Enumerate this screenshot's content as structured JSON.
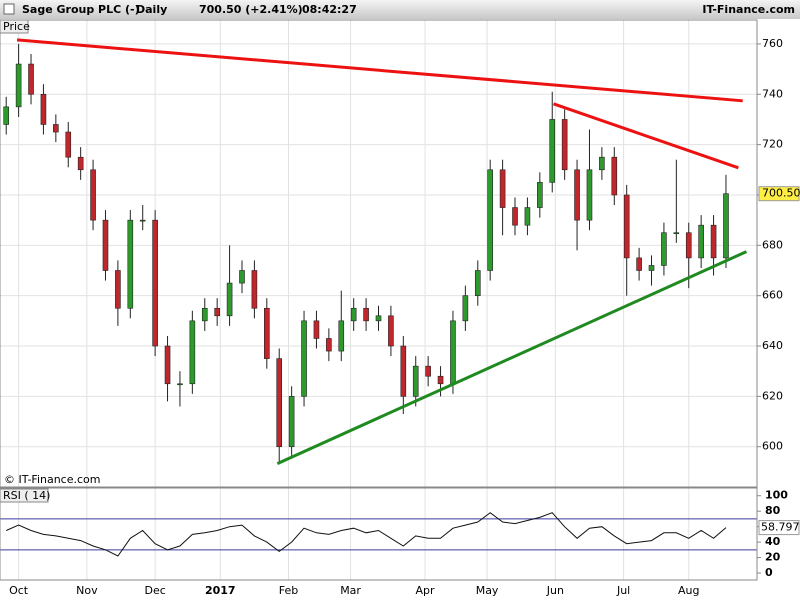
{
  "chart_data": [
    {
      "type": "candlestick",
      "title": "Sage Group PLC (-)",
      "period": "Daily",
      "last": "700.50 (+2.41%)",
      "time": "08:42:27",
      "site": "IT-Finance.com",
      "axis_label": "Price",
      "copyright": "© IT-Finance.com",
      "x": [
        1,
        5,
        9,
        13,
        17,
        21,
        25,
        29,
        33,
        37,
        41,
        45,
        49,
        53,
        57,
        61,
        65,
        69,
        73,
        77,
        81,
        85,
        89,
        93,
        97,
        101,
        105,
        109,
        113,
        117,
        121,
        125,
        129,
        133,
        137,
        141,
        145,
        149,
        153,
        157,
        161,
        165,
        169,
        173,
        177,
        181,
        185,
        189,
        193,
        197,
        201,
        205,
        209,
        213,
        217,
        221,
        225,
        229,
        233
      ],
      "open": [
        728,
        735,
        752,
        740,
        728,
        725,
        715,
        710,
        690,
        670,
        655,
        690,
        690,
        640,
        625,
        625,
        650,
        655,
        652,
        665,
        670,
        655,
        635,
        600,
        620,
        650,
        643,
        638,
        650,
        655,
        650,
        652,
        640,
        620,
        632,
        628,
        625,
        650,
        660,
        670,
        710,
        695,
        688,
        695,
        705,
        730,
        710,
        690,
        710,
        715,
        700,
        675,
        670,
        672,
        685,
        685,
        675,
        688,
        675
      ],
      "high": [
        739,
        760,
        756,
        744,
        732,
        729,
        719,
        714,
        694,
        674,
        694,
        696,
        694,
        644,
        630,
        654,
        659,
        659,
        680,
        674,
        674,
        659,
        639,
        624,
        654,
        654,
        647,
        662,
        659,
        659,
        656,
        656,
        644,
        636,
        636,
        632,
        654,
        664,
        674,
        714,
        714,
        699,
        699,
        709,
        741,
        734,
        714,
        726,
        719,
        719,
        704,
        679,
        676,
        689,
        714,
        689,
        692,
        692,
        708
      ],
      "low": [
        724,
        731,
        736,
        724,
        721,
        711,
        706,
        686,
        666,
        648,
        651,
        686,
        636,
        618,
        616,
        621,
        646,
        648,
        648,
        661,
        651,
        631,
        594,
        596,
        616,
        639,
        634,
        634,
        646,
        646,
        646,
        636,
        613,
        616,
        624,
        620,
        621,
        646,
        656,
        666,
        684,
        684,
        684,
        691,
        701,
        706,
        678,
        686,
        706,
        696,
        660,
        666,
        664,
        668,
        681,
        663,
        671,
        668,
        671
      ],
      "close": [
        735,
        752,
        740,
        728,
        725,
        715,
        710,
        690,
        670,
        655,
        690,
        690,
        640,
        625,
        625,
        650,
        655,
        652,
        665,
        670,
        655,
        635,
        600,
        620,
        650,
        643,
        638,
        650,
        655,
        650,
        652,
        640,
        620,
        632,
        628,
        625,
        650,
        660,
        670,
        710,
        695,
        688,
        695,
        705,
        730,
        710,
        690,
        710,
        715,
        700,
        675,
        670,
        672,
        685,
        685,
        675,
        688,
        675,
        700.5
      ],
      "up_color": "#2e9a2e",
      "down_color": "#c0272d",
      "xlim": [
        -1,
        243
      ],
      "xticks": [
        {
          "value": 5,
          "label": "Oct"
        },
        {
          "value": 27,
          "label": "Nov"
        },
        {
          "value": 49,
          "label": "Dec"
        },
        {
          "value": 70,
          "label": "2017"
        },
        {
          "value": 92,
          "label": "Feb"
        },
        {
          "value": 112,
          "label": "Mar"
        },
        {
          "value": 136,
          "label": "Apr"
        },
        {
          "value": 156,
          "label": "May"
        },
        {
          "value": 178,
          "label": "Jun"
        },
        {
          "value": 200,
          "label": "Jul"
        },
        {
          "value": 221,
          "label": "Aug"
        }
      ],
      "ylim": [
        584,
        769.5
      ],
      "yticks": [
        600,
        620,
        640,
        660,
        680,
        700,
        720,
        740,
        760
      ],
      "grid": true,
      "last_price": {
        "value": 700.5,
        "label": "700.50"
      },
      "trendlines": [
        {
          "x": [
            4.5,
            238.4
          ],
          "y": [
            761.6,
            737.4
          ],
          "color": "#ee1111"
        },
        {
          "x": [
            177.4,
            237
          ],
          "y": [
            736.2,
            710.8
          ],
          "color": "#ee1111"
        },
        {
          "x": [
            88.4,
            239.6
          ],
          "y": [
            593.3,
            677.5
          ],
          "color": "#1f8a1f"
        }
      ]
    },
    {
      "type": "line",
      "axis_label": "RSI ( 14)",
      "values": [
        55,
        62,
        55,
        50,
        48,
        45,
        42,
        35,
        30,
        22,
        45,
        55,
        38,
        30,
        35,
        50,
        52,
        55,
        60,
        62,
        48,
        40,
        28,
        40,
        58,
        52,
        50,
        55,
        58,
        52,
        55,
        45,
        35,
        48,
        45,
        45,
        58,
        62,
        66,
        78,
        66,
        64,
        68,
        72,
        78,
        60,
        45,
        58,
        60,
        48,
        38,
        40,
        42,
        52,
        52,
        45,
        55,
        45,
        58.797
      ],
      "color": "#111111",
      "ylim": [
        -9,
        110
      ],
      "yticks": [
        0,
        20,
        40,
        60,
        80,
        100
      ],
      "levels": [
        30,
        70
      ],
      "last_value": {
        "value": 58.797,
        "label": "58.797"
      }
    }
  ]
}
